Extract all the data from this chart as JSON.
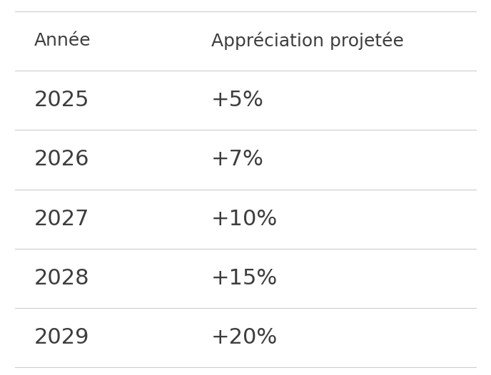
{
  "col_headers": [
    "Année",
    "Appréciation projetée"
  ],
  "rows": [
    [
      "2025",
      "+5%"
    ],
    [
      "2026",
      "+7%"
    ],
    [
      "2027",
      "+10%"
    ],
    [
      "2028",
      "+15%"
    ],
    [
      "2029",
      "+20%"
    ]
  ],
  "background_color": "#ffffff",
  "header_text_color": "#3d3d3d",
  "cell_text_color": "#3d3d3d",
  "line_color": "#cccccc",
  "header_fontsize": 18,
  "cell_fontsize": 22,
  "fig_width": 6.88,
  "fig_height": 5.26
}
